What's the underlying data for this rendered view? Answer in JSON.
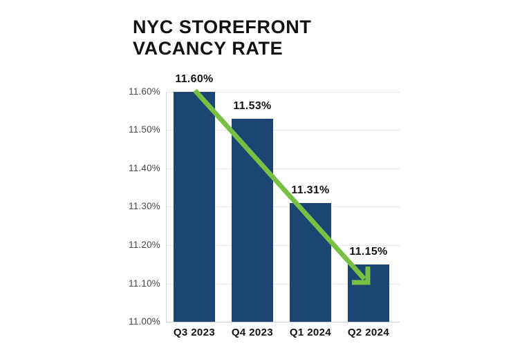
{
  "title": {
    "line1": "NYC STOREFRONT",
    "line2": "VACANCY RATE"
  },
  "chart_data": {
    "type": "bar",
    "title": "NYC STOREFRONT VACANCY RATE",
    "categories": [
      "Q3 2023",
      "Q4 2023",
      "Q1 2024",
      "Q2 2024"
    ],
    "values": [
      11.6,
      11.53,
      11.31,
      11.15
    ],
    "value_labels": [
      "11.60%",
      "11.53%",
      "11.31%",
      "11.15%"
    ],
    "xlabel": "",
    "ylabel": "",
    "ylim": [
      11.0,
      11.6
    ],
    "y_ticks": [
      11.0,
      11.1,
      11.2,
      11.3,
      11.4,
      11.5,
      11.6
    ],
    "y_tick_labels": [
      "11.00%",
      "11.10%",
      "11.20%",
      "11.30%",
      "11.40%",
      "11.50%",
      "11.60%"
    ],
    "grid": true,
    "legend": false,
    "annotation": {
      "name": "downward-trend-arrow",
      "direction": "down-right",
      "color": "#76c143"
    },
    "colors": {
      "bar": "#1d4573",
      "arrow": "#76c143",
      "grid": "#e7e7ea",
      "axis": "#d6d7db",
      "text": "#121212",
      "tick_text": "#47474c",
      "background": "#ffffff"
    }
  }
}
